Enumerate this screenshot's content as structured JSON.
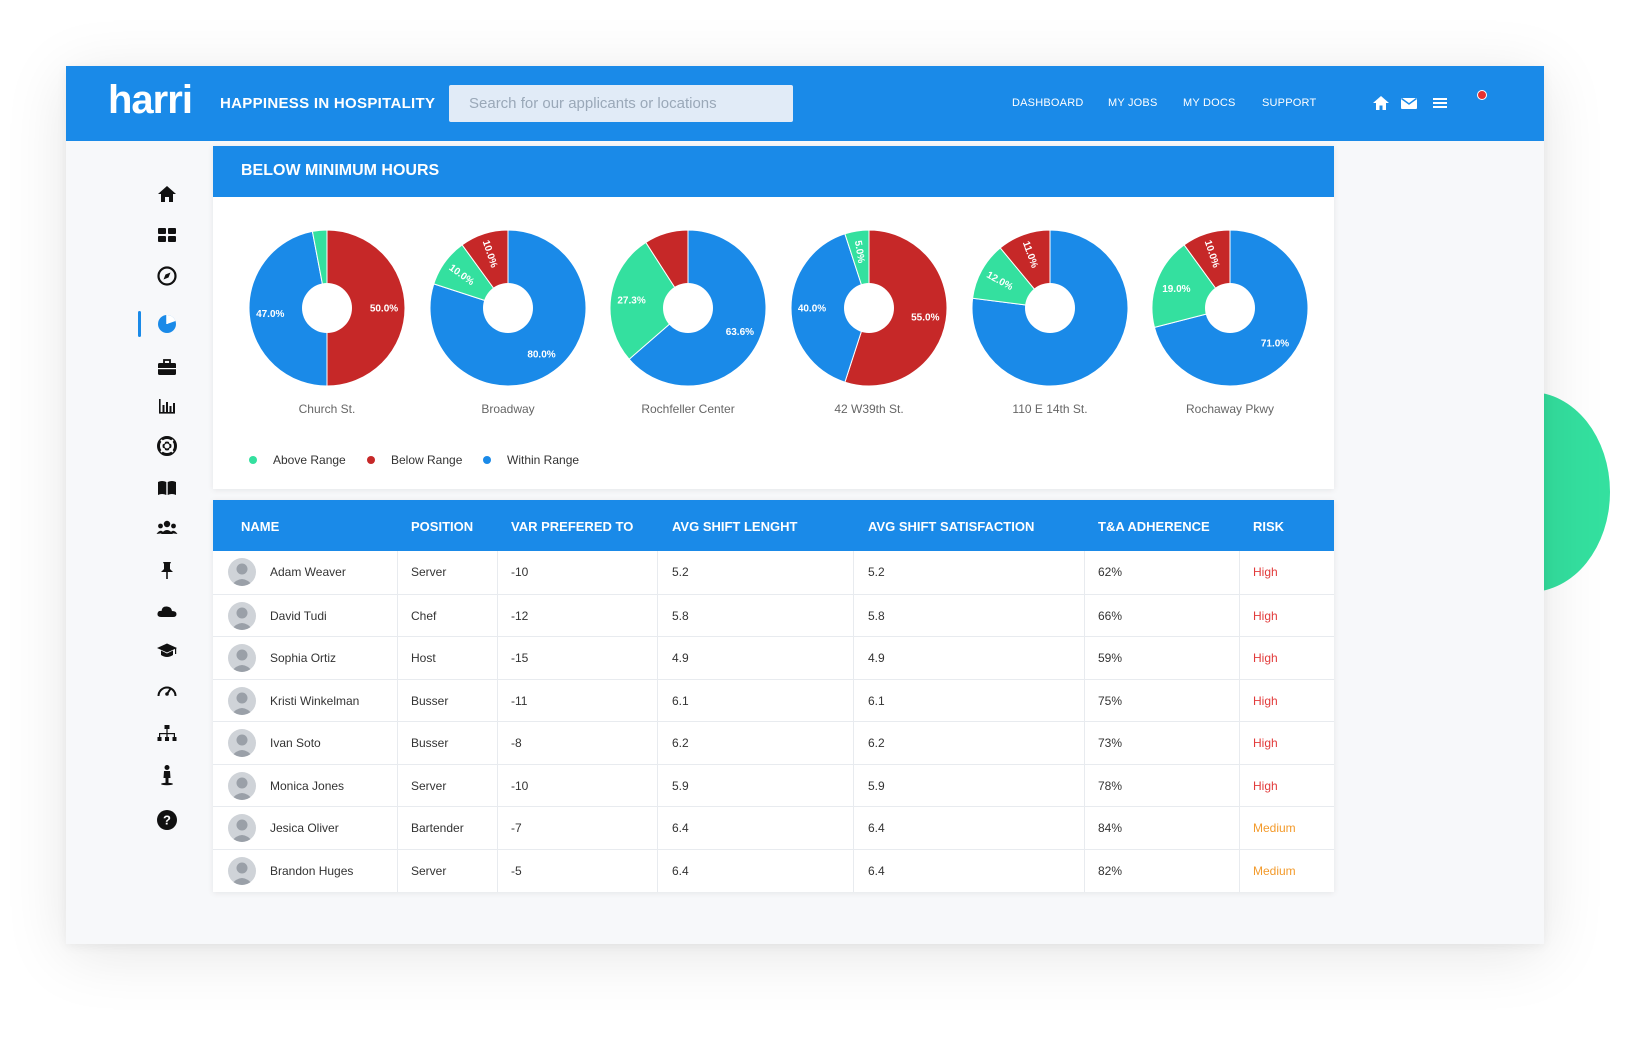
{
  "header": {
    "logo": "harri",
    "tagline": "HAPPINESS IN HOSPITALITY",
    "search_placeholder": "Search for our applicants or locations",
    "nav": [
      "DASHBOARD",
      "MY JOBS",
      "MY DOCS",
      "SUPPORT"
    ],
    "icons": [
      "home-icon",
      "mail-icon",
      "menu-icon"
    ]
  },
  "sidebar": {
    "icons": [
      "home-icon",
      "dashboard-icon",
      "compass-icon",
      "pie-chart-icon",
      "briefcase-icon",
      "bar-chart-icon",
      "lifebuoy-icon",
      "book-icon",
      "users-icon",
      "pin-icon",
      "cloud-icon",
      "graduation-cap-icon",
      "speedometer-icon",
      "org-chart-icon",
      "person-icon",
      "help-icon"
    ],
    "active_index": 3
  },
  "colors": {
    "primary": "#1a8ae8",
    "above": "#34e09f",
    "below": "#c62828",
    "within": "#1a8ae8"
  },
  "chart_section": {
    "title": "BELOW MINIMUM HOURS"
  },
  "chart_data": {
    "type": "pie",
    "title": "BELOW MINIMUM HOURS",
    "legend": [
      "Above Range",
      "Below Range",
      "Within Range"
    ],
    "legend_position": "bottom-left",
    "charts": [
      {
        "name": "Church St.",
        "slices": [
          {
            "series": "Below Range",
            "value": 50.0,
            "label": "50.0%"
          },
          {
            "series": "Within Range",
            "value": 47.0,
            "label": "47.0%"
          },
          {
            "series": "Above Range",
            "value": 3.0,
            "label": ""
          }
        ]
      },
      {
        "name": "Broadway",
        "slices": [
          {
            "series": "Within Range",
            "value": 80.0,
            "label": "80.0%"
          },
          {
            "series": "Above Range",
            "value": 10.0,
            "label": "10.0%"
          },
          {
            "series": "Below Range",
            "value": 10.0,
            "label": "10.0%"
          }
        ]
      },
      {
        "name": "Rochfeller Center",
        "slices": [
          {
            "series": "Within Range",
            "value": 63.6,
            "label": "63.6%"
          },
          {
            "series": "Above Range",
            "value": 27.3,
            "label": "27.3%"
          },
          {
            "series": "Below Range",
            "value": 9.1,
            "label": ""
          }
        ]
      },
      {
        "name": "42 W39th St.",
        "slices": [
          {
            "series": "Below Range",
            "value": 55.0,
            "label": "55.0%"
          },
          {
            "series": "Within Range",
            "value": 40.0,
            "label": "40.0%"
          },
          {
            "series": "Above Range",
            "value": 5.0,
            "label": "5.0%"
          }
        ]
      },
      {
        "name": "110 E 14th St.",
        "slices": [
          {
            "series": "Within Range",
            "value": 77.0,
            "label": ""
          },
          {
            "series": "Above Range",
            "value": 12.0,
            "label": "12.0%"
          },
          {
            "series": "Below Range",
            "value": 11.0,
            "label": "11.0%"
          }
        ]
      },
      {
        "name": "Rochaway Pkwy",
        "slices": [
          {
            "series": "Within Range",
            "value": 71.0,
            "label": "71.0%"
          },
          {
            "series": "Above Range",
            "value": 19.0,
            "label": "19.0%"
          },
          {
            "series": "Below Range",
            "value": 10.0,
            "label": "10.0%"
          }
        ]
      }
    ]
  },
  "table": {
    "columns": [
      "NAME",
      "POSITION",
      "VAR PREFERED TO",
      "AVG SHIFT LENGHT",
      "AVG SHIFT SATISFACTION",
      "T&A ADHERENCE",
      "RISK"
    ],
    "rows": [
      {
        "name": "Adam Weaver",
        "position": "Server",
        "var": "-10",
        "length": "5.2",
        "satisfaction": "5.2",
        "adherence": "62%",
        "risk": "High"
      },
      {
        "name": "David Tudi",
        "position": "Chef",
        "var": "-12",
        "length": "5.8",
        "satisfaction": "5.8",
        "adherence": "66%",
        "risk": "High"
      },
      {
        "name": "Sophia Ortiz",
        "position": "Host",
        "var": "-15",
        "length": "4.9",
        "satisfaction": "4.9",
        "adherence": "59%",
        "risk": "High"
      },
      {
        "name": "Kristi Winkelman",
        "position": "Busser",
        "var": "-11",
        "length": "6.1",
        "satisfaction": "6.1",
        "adherence": "75%",
        "risk": "High"
      },
      {
        "name": "Ivan Soto",
        "position": "Busser",
        "var": "-8",
        "length": "6.2",
        "satisfaction": "6.2",
        "adherence": "73%",
        "risk": "High"
      },
      {
        "name": "Monica Jones",
        "position": "Server",
        "var": "-10",
        "length": "5.9",
        "satisfaction": "5.9",
        "adherence": "78%",
        "risk": "High"
      },
      {
        "name": "Jesica Oliver",
        "position": "Bartender",
        "var": "-7",
        "length": "6.4",
        "satisfaction": "6.4",
        "adherence": "84%",
        "risk": "Medium"
      },
      {
        "name": "Brandon Huges",
        "position": "Server",
        "var": "-5",
        "length": "6.4",
        "satisfaction": "6.4",
        "adherence": "82%",
        "risk": "Medium"
      }
    ]
  }
}
